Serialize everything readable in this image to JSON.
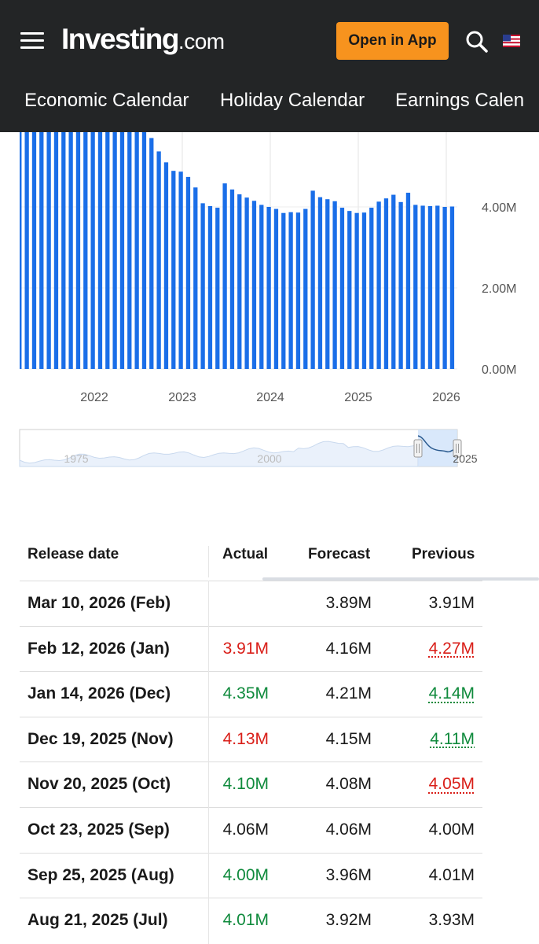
{
  "header": {
    "logo_main": "Investing",
    "logo_suffix": ".com",
    "open_app_label": "Open in App",
    "icons": [
      "hamburger-menu-icon",
      "search-icon",
      "us-flag-icon"
    ],
    "accent_color": "#f7931e",
    "background_color": "#232526"
  },
  "nav": {
    "items": [
      "Economic Calendar",
      "Holiday Calendar",
      "Earnings Calen"
    ]
  },
  "chart_data": {
    "type": "bar",
    "title": "",
    "watermark": "Investing.com",
    "bar_color": "#1a6ee8",
    "ylim": [
      0,
      5.9
    ],
    "y_tick_labels": [
      "0.00M",
      "2.00M",
      "4.00M"
    ],
    "y_ticks": [
      0,
      2,
      4
    ],
    "x_tick_labels": [
      "2022",
      "2023",
      "2024",
      "2025",
      "2026"
    ],
    "x_tick_years": [
      2022,
      2023,
      2024,
      2025,
      2026
    ],
    "x_start": 2021.15,
    "x_step": 0.08333,
    "values": [
      6.2,
      6.2,
      6.2,
      6.2,
      6.2,
      6.2,
      6.2,
      6.2,
      6.2,
      6.2,
      6.2,
      6.2,
      6.2,
      6.2,
      6.2,
      6.2,
      6.2,
      5.93,
      5.7,
      5.37,
      5.1,
      4.89,
      4.87,
      4.74,
      4.48,
      4.09,
      4.02,
      3.98,
      4.58,
      4.43,
      4.31,
      4.23,
      4.15,
      4.05,
      4.0,
      3.95,
      3.85,
      3.87,
      3.86,
      3.95,
      4.4,
      4.24,
      4.19,
      4.14,
      3.98,
      3.9,
      3.85,
      3.86,
      3.98,
      4.13,
      4.21,
      4.3,
      4.12,
      4.35,
      4.05,
      4.03,
      4.02,
      4.03,
      4.0,
      4.01,
      4.01,
      4.06,
      4.1,
      4.13,
      4.35,
      3.91
    ],
    "grid": true
  },
  "nav_chart": {
    "x_labels": [
      "1975",
      "2000",
      "2025"
    ]
  },
  "table": {
    "headers": {
      "release_date": "Release date",
      "actual": "Actual",
      "forecast": "Forecast",
      "previous": "Previous"
    },
    "rows": [
      {
        "date": "Mar 10, 2026 (Feb)",
        "actual": "",
        "actual_color": "black",
        "forecast": "3.89M",
        "previous": "3.91M",
        "previous_color": "black",
        "previous_revised": false
      },
      {
        "date": "Feb 12, 2026 (Jan)",
        "actual": "3.91M",
        "actual_color": "red",
        "forecast": "4.16M",
        "previous": "4.27M",
        "previous_color": "red",
        "previous_revised": true
      },
      {
        "date": "Jan 14, 2026 (Dec)",
        "actual": "4.35M",
        "actual_color": "green",
        "forecast": "4.21M",
        "previous": "4.14M",
        "previous_color": "green",
        "previous_revised": true
      },
      {
        "date": "Dec 19, 2025 (Nov)",
        "actual": "4.13M",
        "actual_color": "red",
        "forecast": "4.15M",
        "previous": "4.11M",
        "previous_color": "green",
        "previous_revised": true
      },
      {
        "date": "Nov 20, 2025 (Oct)",
        "actual": "4.10M",
        "actual_color": "green",
        "forecast": "4.08M",
        "previous": "4.05M",
        "previous_color": "red",
        "previous_revised": true
      },
      {
        "date": "Oct 23, 2025 (Sep)",
        "actual": "4.06M",
        "actual_color": "black",
        "forecast": "4.06M",
        "previous": "4.00M",
        "previous_color": "black",
        "previous_revised": false
      },
      {
        "date": "Sep 25, 2025 (Aug)",
        "actual": "4.00M",
        "actual_color": "green",
        "forecast": "3.96M",
        "previous": "4.01M",
        "previous_color": "black",
        "previous_revised": false
      },
      {
        "date": "Aug 21, 2025 (Jul)",
        "actual": "4.01M",
        "actual_color": "green",
        "forecast": "3.92M",
        "previous": "3.93M",
        "previous_color": "black",
        "previous_revised": false
      }
    ]
  }
}
